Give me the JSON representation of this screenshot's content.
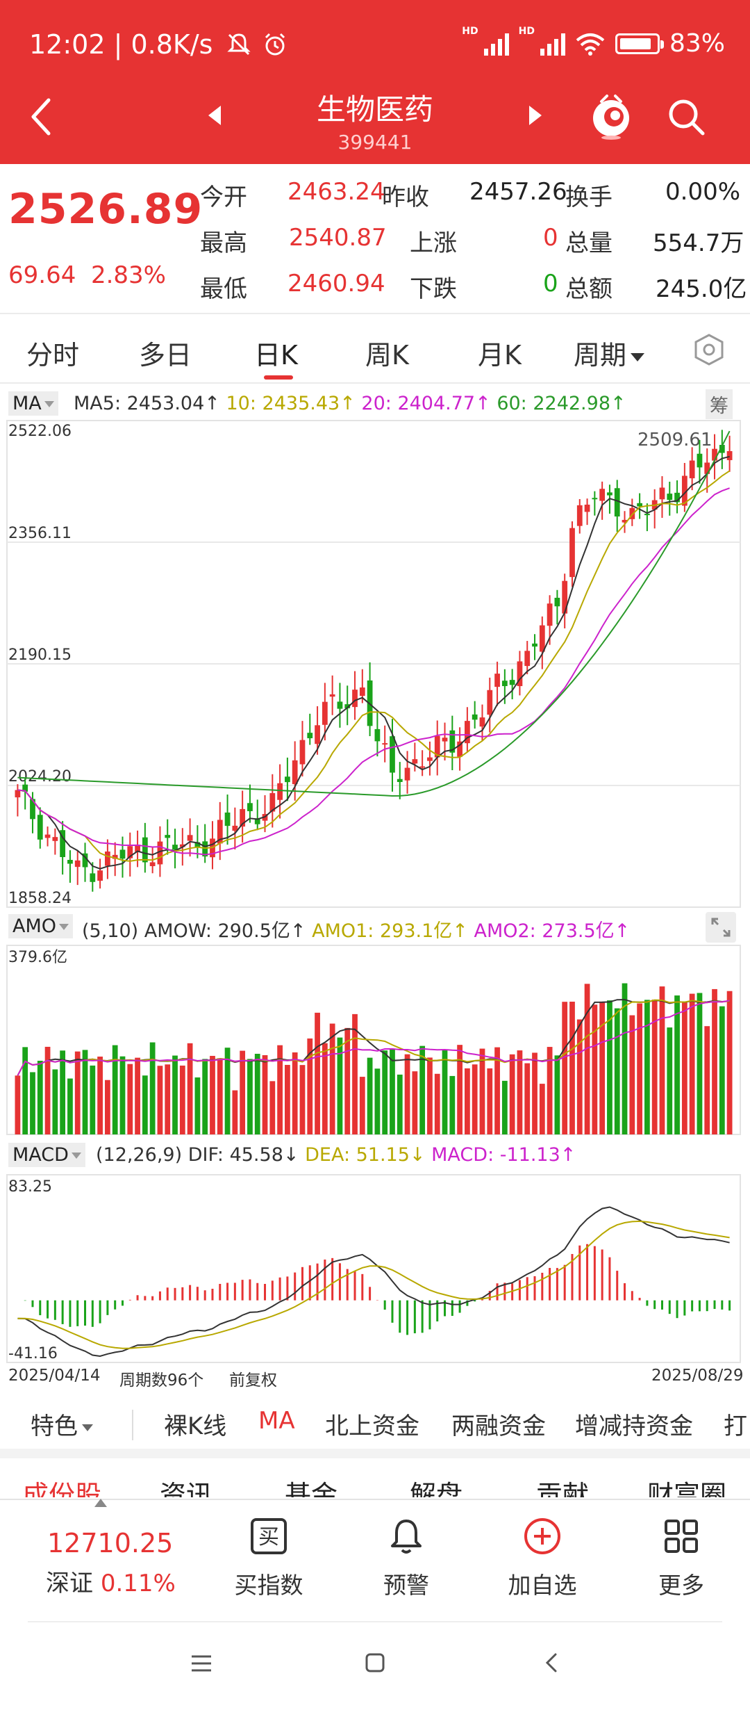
{
  "status_bar": {
    "time": "12:02",
    "network_speed": "0.8K/s",
    "battery": "83%",
    "icons": [
      "mute-icon",
      "alarm-icon",
      "hd-signal-icon",
      "hd-signal-icon",
      "wifi-icon",
      "battery-icon"
    ]
  },
  "nav": {
    "title": "生物医药",
    "code": "399441",
    "icons": [
      "back-icon",
      "prev-icon",
      "next-icon",
      "mascot-icon",
      "search-icon"
    ]
  },
  "quote": {
    "price": "2526.89",
    "change": "69.64",
    "change_pct": "2.83%",
    "fields": [
      {
        "label": "今开",
        "value": "2463.24"
      },
      {
        "label": "昨收",
        "value": "2457.26"
      },
      {
        "label": "换手",
        "value": "0.00%"
      },
      {
        "label": "最高",
        "value": "2540.87"
      },
      {
        "label": "上涨",
        "value": "0"
      },
      {
        "label": "总量",
        "value": "554.7万"
      },
      {
        "label": "最低",
        "value": "2460.94"
      },
      {
        "label": "下跌",
        "value": "0"
      },
      {
        "label": "总额",
        "value": "245.0亿"
      }
    ]
  },
  "tabs": {
    "items": [
      "分时",
      "多日",
      "日K",
      "周K",
      "月K",
      "周期"
    ],
    "active": "日K"
  },
  "kline_legend": {
    "selector": "MA",
    "items": [
      {
        "text": "MA5: 2453.04↑",
        "color": "#333333"
      },
      {
        "text": "10: 2435.43↑",
        "color": "#b8a800"
      },
      {
        "text": "20: 2404.77↑",
        "color": "#cc22cc"
      },
      {
        "text": "60: 2242.98↑",
        "color": "#2a9a2a"
      }
    ],
    "chip": "筹",
    "ylabels": [
      "2522.06",
      "2356.11",
      "2190.15",
      "2024.20",
      "1858.24"
    ],
    "max_label": "2509.61"
  },
  "amo_legend": {
    "selector": "AMO",
    "items": [
      {
        "text": "(5,10) AMOW: 290.5亿↑",
        "color": "#333333"
      },
      {
        "text": "AMO1: 293.1亿↑",
        "color": "#b8a800"
      },
      {
        "text": "AMO2: 273.5亿↑",
        "color": "#cc22cc"
      }
    ],
    "max_label": "379.6亿"
  },
  "macd_legend": {
    "selector": "MACD",
    "items": [
      {
        "text": "(12,26,9) DIF: 45.58↓",
        "color": "#333333"
      },
      {
        "text": "DEA: 51.15↓",
        "color": "#b8a800"
      },
      {
        "text": "MACD: -11.13↑",
        "color": "#cc22cc"
      }
    ],
    "ylabels": [
      "83.25",
      "-41.16"
    ]
  },
  "chart_footer": {
    "start_date": "2025/04/14",
    "period_count": "周期数96个",
    "adjust": "前复权",
    "end_date": "2025/08/29"
  },
  "subtabs": {
    "items": [
      "特色",
      "裸K线",
      "MA",
      "北上资金",
      "两融资金",
      "增减持资金",
      "打"
    ],
    "active": "MA"
  },
  "section_tabs": {
    "items": [
      "成份股",
      "资讯",
      "基金",
      "解盘",
      "贡献",
      "财富圈"
    ],
    "active": "成份股"
  },
  "bottom_bar": {
    "index_value": "12710.25",
    "index_name": "深证",
    "index_change": "0.11%",
    "actions": [
      {
        "label": "买指数",
        "icon": "buy-icon"
      },
      {
        "label": "预警",
        "icon": "bell-icon"
      },
      {
        "label": "加自选",
        "icon": "add-watch-icon"
      },
      {
        "label": "更多",
        "icon": "grid-icon"
      }
    ]
  },
  "colors": {
    "up": "#e63333",
    "down": "#1aa31a",
    "ma5": "#333333",
    "ma10": "#b8a800",
    "ma20": "#cc22cc",
    "ma60": "#2a9a2a"
  }
}
